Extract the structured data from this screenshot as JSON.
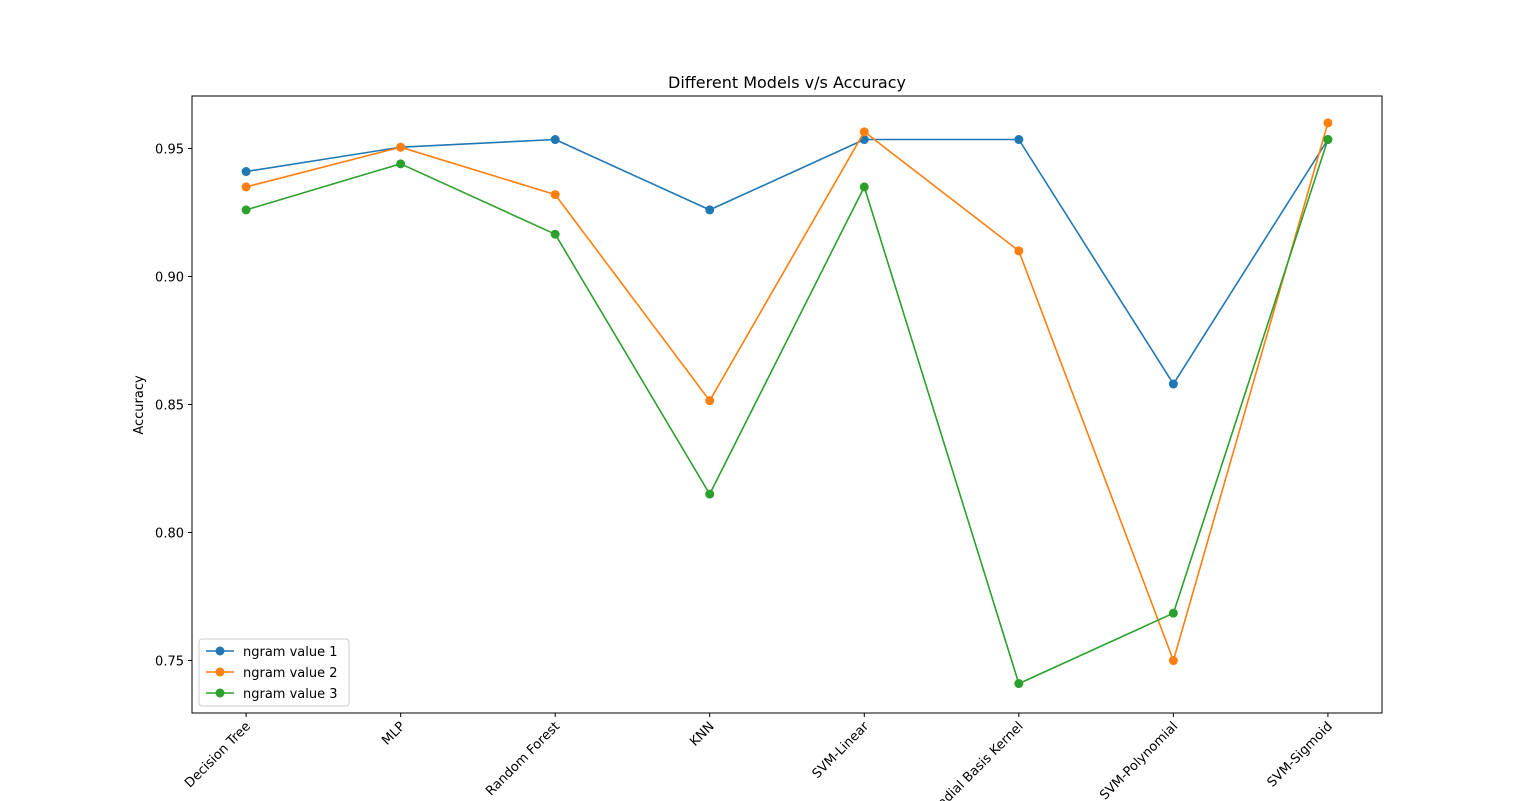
{
  "chart_data": {
    "type": "line",
    "title": "Different Models v/s Accuracy",
    "xlabel": "",
    "ylabel": "Accuracy",
    "categories": [
      "Decision Tree",
      "MLP",
      "Random Forest",
      "KNN",
      "SVM-Linear",
      "Radial Basis Kernel",
      "SVM-Polynomial",
      "SVM-Sigmoid"
    ],
    "ylim": [
      0.7295,
      0.9705
    ],
    "yticks": [
      "0.75",
      "0.80",
      "0.85",
      "0.90",
      "0.95"
    ],
    "ytick_values": [
      0.75,
      0.8,
      0.85,
      0.9,
      0.95
    ],
    "grid": false,
    "legend_position": "lower-left",
    "series": [
      {
        "name": "ngram value 1",
        "color": "#1f77b4",
        "values": [
          0.941,
          0.9505,
          0.9535,
          0.926,
          0.9535,
          0.9535,
          0.858,
          0.9535
        ]
      },
      {
        "name": "ngram value 2",
        "color": "#ff7f0e",
        "values": [
          0.935,
          0.9505,
          0.932,
          0.8515,
          0.9565,
          0.91,
          0.75,
          0.96
        ]
      },
      {
        "name": "ngram value 3",
        "color": "#2ca02c",
        "values": [
          0.926,
          0.944,
          0.9165,
          0.815,
          0.935,
          0.741,
          0.7685,
          0.9535
        ]
      }
    ]
  }
}
